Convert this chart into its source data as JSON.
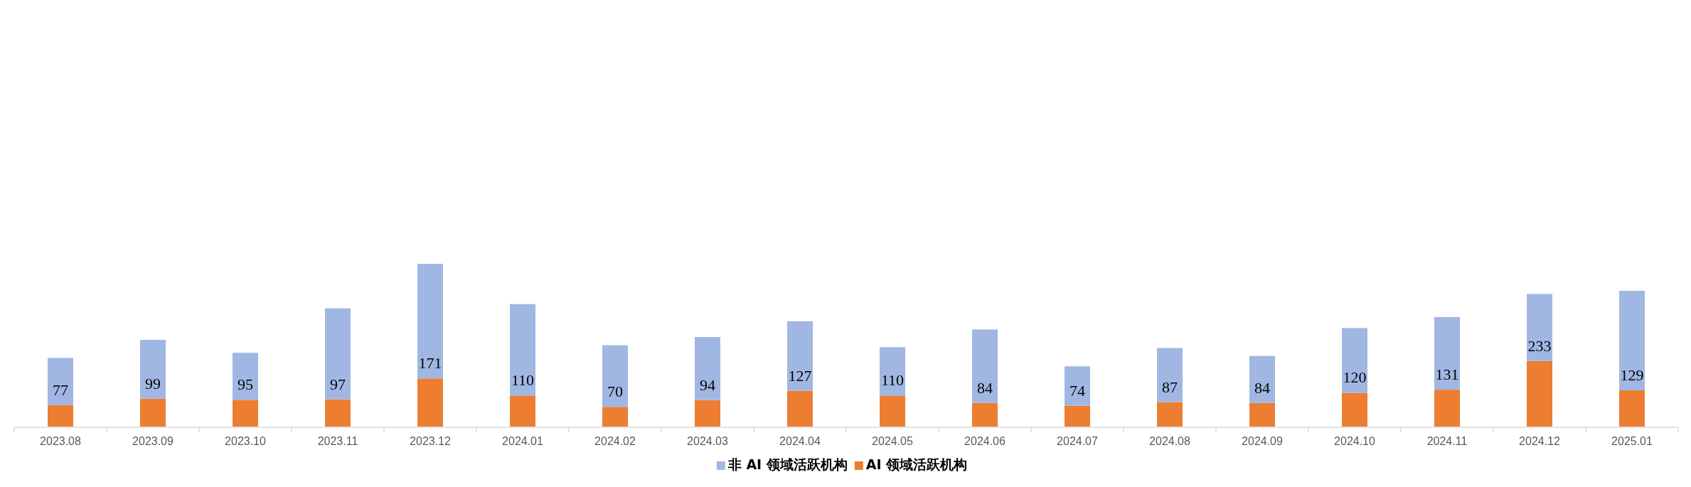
{
  "chart_data": {
    "type": "bar",
    "stacked": true,
    "legend": "bottom",
    "categories": [
      "2023.08",
      "2023.09",
      "2023.10",
      "2023.11",
      "2023.12",
      "2024.01",
      "2024.02",
      "2024.03",
      "2024.04",
      "2024.05",
      "2024.06",
      "2024.07",
      "2024.08",
      "2024.09",
      "2024.10",
      "2024.11",
      "2024.12",
      "2025.01"
    ],
    "series": [
      {
        "name": "AI 领域活跃机构",
        "color": "#ed7d31",
        "values": [
          77,
          99,
          95,
          97,
          171,
          110,
          70,
          94,
          127,
          110,
          84,
          74,
          87,
          84,
          120,
          131,
          233,
          129
        ],
        "value_labels": [
          "77",
          "99",
          "95",
          "97",
          "171",
          "110",
          "70",
          "94",
          "127",
          "110",
          "84",
          "74",
          "87",
          "84",
          "120",
          "131",
          "233",
          "129"
        ]
      },
      {
        "name": "非 AI 领域活跃机构",
        "color": "#a1b7e3",
        "values": [
          167,
          209,
          167,
          323,
          407,
          325,
          219,
          224,
          247,
          172,
          261,
          140,
          192,
          167,
          230,
          258,
          238,
          353
        ]
      }
    ]
  }
}
